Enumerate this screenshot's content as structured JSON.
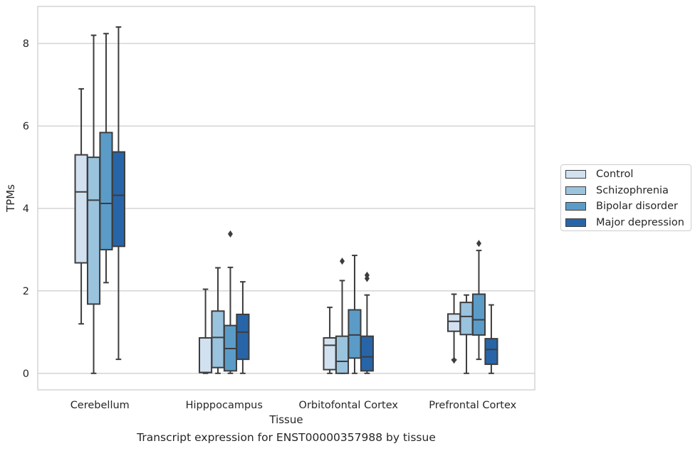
{
  "chart_data": {
    "type": "boxplot",
    "title": "",
    "xlabel": "Tissue",
    "ylabel": "TPMs",
    "caption": "Transcript expression for ENST00000357988 by tissue",
    "ylim": [
      -0.4,
      8.9
    ],
    "yticks": [
      0,
      2,
      4,
      6,
      8
    ],
    "grid": true,
    "legend_position": "right",
    "categories": [
      "Cerebellum",
      "Hipppocampus",
      "Orbitofontal Cortex",
      "Prefrontal Cortex"
    ],
    "series": [
      {
        "name": "Control",
        "color": "#d2e1f0",
        "boxes": [
          {
            "whisker_low": 1.2,
            "q1": 2.68,
            "median": 4.4,
            "q3": 5.3,
            "whisker_high": 6.9,
            "outliers": []
          },
          {
            "whisker_low": 0.0,
            "q1": 0.02,
            "median": 0.02,
            "q3": 0.86,
            "whisker_high": 2.04,
            "outliers": []
          },
          {
            "whisker_low": 0.0,
            "q1": 0.09,
            "median": 0.68,
            "q3": 0.86,
            "whisker_high": 1.6,
            "outliers": []
          },
          {
            "whisker_low": 0.33,
            "q1": 1.02,
            "median": 1.26,
            "q3": 1.44,
            "whisker_high": 1.92,
            "outliers": [
              0.32
            ]
          }
        ]
      },
      {
        "name": "Schizophrenia",
        "color": "#9ac3de",
        "boxes": [
          {
            "whisker_low": 0.0,
            "q1": 1.68,
            "median": 4.2,
            "q3": 5.24,
            "whisker_high": 8.2,
            "outliers": []
          },
          {
            "whisker_low": 0.0,
            "q1": 0.14,
            "median": 0.87,
            "q3": 1.51,
            "whisker_high": 2.56,
            "outliers": []
          },
          {
            "whisker_low": 0.0,
            "q1": 0.0,
            "median": 0.29,
            "q3": 0.9,
            "whisker_high": 2.25,
            "outliers": [
              2.72
            ]
          },
          {
            "whisker_low": 0.0,
            "q1": 0.94,
            "median": 1.38,
            "q3": 1.72,
            "whisker_high": 1.9,
            "outliers": []
          }
        ]
      },
      {
        "name": "Bipolar disorder",
        "color": "#5b9bc8",
        "boxes": [
          {
            "whisker_low": 2.2,
            "q1": 3.0,
            "median": 4.12,
            "q3": 5.84,
            "whisker_high": 8.24,
            "outliers": []
          },
          {
            "whisker_low": 0.0,
            "q1": 0.06,
            "median": 0.6,
            "q3": 1.16,
            "whisker_high": 2.57,
            "outliers": [
              3.38
            ]
          },
          {
            "whisker_low": 0.0,
            "q1": 0.37,
            "median": 0.93,
            "q3": 1.54,
            "whisker_high": 2.86,
            "outliers": []
          },
          {
            "whisker_low": 0.34,
            "q1": 0.93,
            "median": 1.3,
            "q3": 1.92,
            "whisker_high": 2.98,
            "outliers": [
              3.15
            ]
          }
        ]
      },
      {
        "name": "Major depression",
        "color": "#2765a8",
        "boxes": [
          {
            "whisker_low": 0.34,
            "q1": 3.08,
            "median": 4.32,
            "q3": 5.37,
            "whisker_high": 8.4,
            "outliers": []
          },
          {
            "whisker_low": 0.0,
            "q1": 0.34,
            "median": 1.0,
            "q3": 1.43,
            "whisker_high": 2.22,
            "outliers": []
          },
          {
            "whisker_low": 0.0,
            "q1": 0.06,
            "median": 0.4,
            "q3": 0.9,
            "whisker_high": 1.9,
            "outliers": [
              2.3,
              2.38
            ]
          },
          {
            "whisker_low": 0.0,
            "q1": 0.22,
            "median": 0.58,
            "q3": 0.84,
            "whisker_high": 1.66,
            "outliers": []
          }
        ]
      }
    ]
  }
}
